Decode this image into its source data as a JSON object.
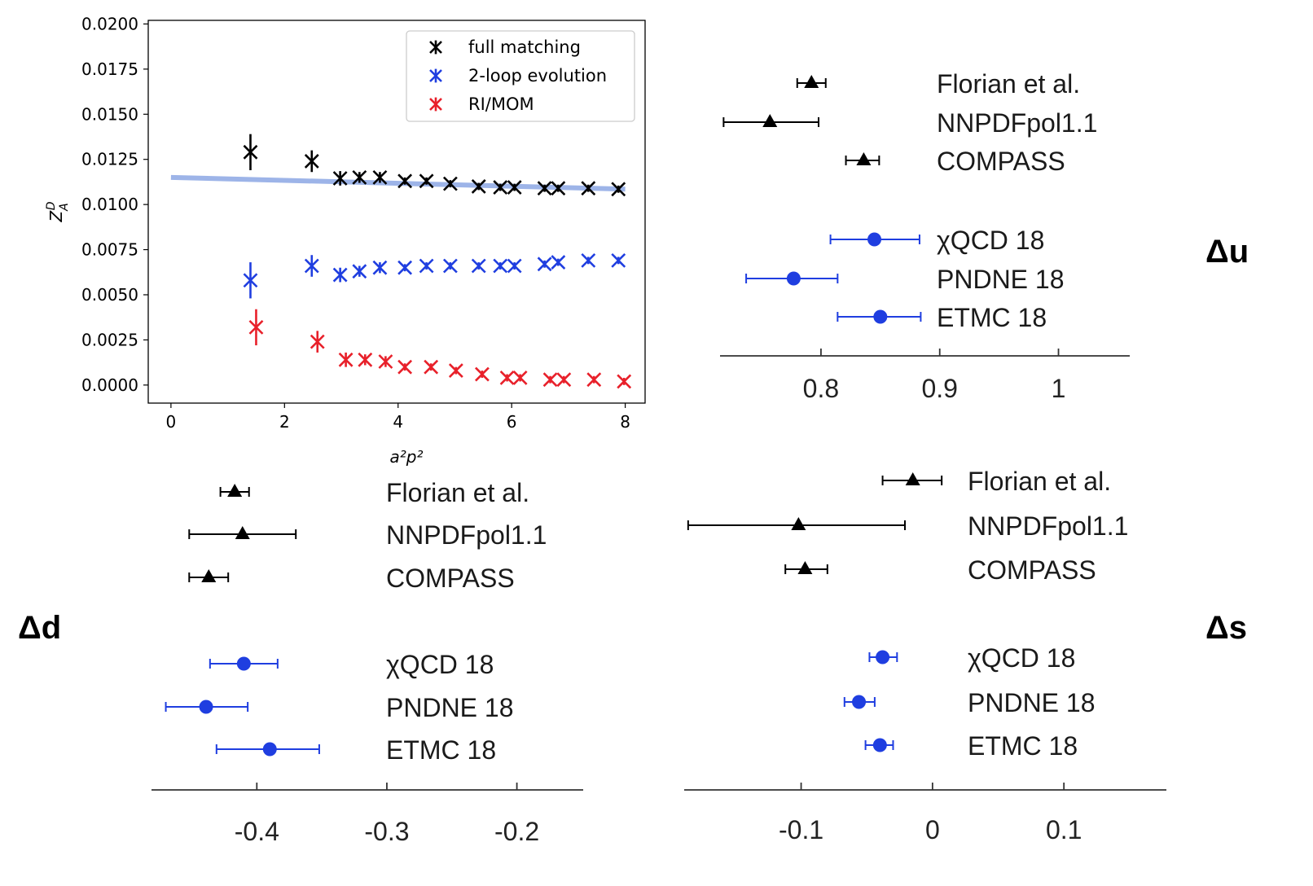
{
  "chart_data": [
    {
      "type": "scatter",
      "xlabel": "a²p²",
      "ylabel": "Z_A^D",
      "xlim": [
        -0.4,
        8.35
      ],
      "ylim": [
        -0.001,
        0.0202
      ],
      "xticks": [
        "0",
        "2",
        "4",
        "6",
        "8"
      ],
      "yticks": [
        "0.0000",
        "0.0025",
        "0.0050",
        "0.0075",
        "0.0100",
        "0.0125",
        "0.0150",
        "0.0175",
        "0.0200"
      ],
      "fit_line": {
        "x": [
          0,
          8
        ],
        "y": [
          0.0115,
          0.01085
        ],
        "color": "#9db4e8"
      },
      "series": [
        {
          "name": "full matching",
          "color": "#000000",
          "x": [
            1.4,
            2.48,
            2.98,
            3.32,
            3.68,
            4.12,
            4.5,
            4.92,
            5.42,
            5.8,
            6.05,
            6.58,
            6.82,
            7.35,
            7.88
          ],
          "y": [
            0.0129,
            0.0124,
            0.01145,
            0.0115,
            0.0115,
            0.0113,
            0.0113,
            0.01115,
            0.011,
            0.01095,
            0.01095,
            0.0109,
            0.0109,
            0.0109,
            0.01085
          ],
          "err": [
            0.001,
            0.0006,
            0.0004,
            0.0003,
            0.0003,
            0.0002,
            0.0002,
            0.0002,
            0.0002,
            0.0002,
            0.0002,
            0.0002,
            0.0002,
            0.0002,
            0.0002
          ]
        },
        {
          "name": "2-loop evolution",
          "color": "#1f3ee0",
          "x": [
            1.4,
            2.48,
            2.98,
            3.32,
            3.68,
            4.12,
            4.5,
            4.92,
            5.42,
            5.8,
            6.05,
            6.58,
            6.82,
            7.35,
            7.88
          ],
          "y": [
            0.0058,
            0.0066,
            0.0061,
            0.0063,
            0.0065,
            0.0065,
            0.0066,
            0.0066,
            0.0066,
            0.0066,
            0.0066,
            0.0067,
            0.0068,
            0.0069,
            0.0069
          ],
          "err": [
            0.001,
            0.0006,
            0.0004,
            0.0003,
            0.0003,
            0.0002,
            0.0002,
            0.0002,
            0.0002,
            0.0002,
            0.0002,
            0.0002,
            0.0002,
            0.0002,
            0.0002
          ]
        },
        {
          "name": "RI/MOM",
          "color": "#e8202a",
          "x": [
            1.5,
            2.58,
            3.08,
            3.42,
            3.78,
            4.12,
            4.58,
            5.02,
            5.48,
            5.92,
            6.15,
            6.68,
            6.92,
            7.45,
            7.98
          ],
          "y": [
            0.0032,
            0.0024,
            0.0014,
            0.0014,
            0.0013,
            0.001,
            0.001,
            0.0008,
            0.0006,
            0.0004,
            0.0004,
            0.0003,
            0.0003,
            0.0003,
            0.0002
          ],
          "err": [
            0.001,
            0.0006,
            0.0004,
            0.0003,
            0.0003,
            0.0002,
            0.0002,
            0.0002,
            0.0002,
            0.0002,
            0.0002,
            0.0002,
            0.0002,
            0.0002,
            0.0002
          ]
        }
      ]
    },
    {
      "type": "forest",
      "panel": "Δu",
      "xlim": [
        0.715,
        1.06
      ],
      "xticks": [
        0.8,
        0.9,
        1.0
      ],
      "xtick_labels": [
        "0.8",
        "0.9",
        "1"
      ],
      "entries": [
        {
          "label": "Florian et al.",
          "value": 0.792,
          "lo": 0.78,
          "hi": 0.804,
          "group": "pheno"
        },
        {
          "label": "NNPDFpol1.1",
          "value": 0.757,
          "lo": 0.718,
          "hi": 0.798,
          "group": "pheno"
        },
        {
          "label": "COMPASS",
          "value": 0.836,
          "lo": 0.821,
          "hi": 0.849,
          "group": "pheno"
        },
        {
          "label": "χQCD 18",
          "value": 0.845,
          "lo": 0.808,
          "hi": 0.883,
          "group": "lattice"
        },
        {
          "label": "PNDNE 18",
          "value": 0.777,
          "lo": 0.737,
          "hi": 0.814,
          "group": "lattice"
        },
        {
          "label": "ETMC 18",
          "value": 0.85,
          "lo": 0.814,
          "hi": 0.884,
          "group": "lattice"
        }
      ]
    },
    {
      "type": "forest",
      "panel": "Δd",
      "xlim": [
        -0.481,
        -0.149
      ],
      "xticks": [
        -0.4,
        -0.3,
        -0.2
      ],
      "xtick_labels": [
        "-0.4",
        "-0.3",
        "-0.2"
      ],
      "entries": [
        {
          "label": "Florian et al.",
          "value": -0.417,
          "lo": -0.428,
          "hi": -0.406,
          "group": "pheno"
        },
        {
          "label": "NNPDFpol1.1",
          "value": -0.411,
          "lo": -0.452,
          "hi": -0.37,
          "group": "pheno"
        },
        {
          "label": "COMPASS",
          "value": -0.437,
          "lo": -0.452,
          "hi": -0.422,
          "group": "pheno"
        },
        {
          "label": "χQCD 18",
          "value": -0.41,
          "lo": -0.436,
          "hi": -0.384,
          "group": "lattice"
        },
        {
          "label": "PNDNE 18",
          "value": -0.439,
          "lo": -0.47,
          "hi": -0.407,
          "group": "lattice"
        },
        {
          "label": "ETMC 18",
          "value": -0.39,
          "lo": -0.431,
          "hi": -0.352,
          "group": "lattice"
        }
      ]
    },
    {
      "type": "forest",
      "panel": "Δs",
      "xlim": [
        -0.189,
        0.178
      ],
      "xticks": [
        -0.1,
        0,
        0.1
      ],
      "xtick_labels": [
        "-0.1",
        "0",
        "0.1"
      ],
      "entries": [
        {
          "label": "Florian et al.",
          "value": -0.015,
          "lo": -0.038,
          "hi": 0.007,
          "group": "pheno"
        },
        {
          "label": "NNPDFpol1.1",
          "value": -0.102,
          "lo": -0.186,
          "hi": -0.021,
          "group": "pheno"
        },
        {
          "label": "COMPASS",
          "value": -0.097,
          "lo": -0.112,
          "hi": -0.08,
          "group": "pheno"
        },
        {
          "label": "χQCD 18",
          "value": -0.038,
          "lo": -0.048,
          "hi": -0.027,
          "group": "lattice"
        },
        {
          "label": "PNDNE 18",
          "value": -0.056,
          "lo": -0.067,
          "hi": -0.044,
          "group": "lattice"
        },
        {
          "label": "ETMC 18",
          "value": -0.04,
          "lo": -0.051,
          "hi": -0.03,
          "group": "lattice"
        }
      ]
    }
  ],
  "colors": {
    "pheno": "#000000",
    "lattice": "#1f3ee0"
  }
}
